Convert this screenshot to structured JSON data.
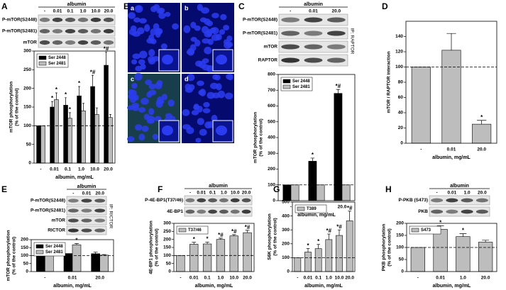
{
  "images": {
    "panel": "B",
    "labels": [
      "a",
      "b",
      "c",
      "d"
    ]
  },
  "chart_data": [
    {
      "panel": "A",
      "type": "bar",
      "blot": {
        "header": "albumin",
        "lanes": [
          "-",
          "0.01",
          "0.1",
          "1.0",
          "10.0",
          "20.0"
        ],
        "rows": [
          "P-mTOR(S2448)",
          "P-mTOR(S2481)",
          "mTOR"
        ]
      },
      "y_label": [
        "mTOR phosphorylation",
        "(% of the control)"
      ],
      "x_label": "albumin, mg/mL",
      "categories": [
        "-",
        "0.01",
        "0.1",
        "1.0",
        "10.0",
        "20.0"
      ],
      "series": [
        {
          "name": "Ser 2448",
          "color": "#000000",
          "values": [
            100,
            150,
            155,
            180,
            205,
            262
          ],
          "errors": [
            null,
            15,
            20,
            25,
            30,
            35
          ],
          "marks": [
            null,
            "*",
            "*",
            "*",
            "*#",
            "*#"
          ]
        },
        {
          "name": "Ser 2481",
          "color": "#bdbdbd",
          "values": [
            100,
            170,
            120,
            140,
            130,
            122
          ],
          "errors": [
            null,
            18,
            15,
            20,
            18,
            8
          ],
          "marks": [
            null,
            "*",
            "*",
            null,
            null,
            null
          ]
        }
      ],
      "ylim": [
        0,
        300
      ],
      "yticks": [
        0,
        50,
        100,
        150,
        200,
        250,
        300
      ],
      "reference_line": 100
    },
    {
      "panel": "C",
      "type": "bar",
      "blot": {
        "header": "albumin",
        "lanes": [
          "-",
          "0.01",
          "20.0"
        ],
        "rows": [
          "P-mTOR(S2448)",
          "P-mTOR(S2481)",
          "mTOR",
          "RAPTOR"
        ],
        "ip": "IP: RAPTOR"
      },
      "y_label": [
        "mTOR phosphorylation",
        "(% of the control)"
      ],
      "x_label": "albumin, mg/mL",
      "categories": [
        "-",
        "0.01",
        "20.0"
      ],
      "series": [
        {
          "name": "Ser 2448",
          "color": "#000000",
          "values": [
            100,
            250,
            680
          ],
          "errors": [
            null,
            20,
            25
          ],
          "marks": [
            null,
            "*",
            "*#"
          ]
        },
        {
          "name": "Ser 2481",
          "color": "#bdbdbd",
          "values": [
            100,
            100,
            100
          ],
          "errors": [
            null,
            null,
            null
          ],
          "marks": [
            null,
            null,
            null
          ]
        }
      ],
      "ylim": [
        0,
        800
      ],
      "yticks": [
        0,
        100,
        200,
        300,
        400,
        500,
        600,
        700,
        800
      ],
      "reference_line": 100
    },
    {
      "panel": "D",
      "type": "bar",
      "y_label": [
        "mTOR / RAPTOR interaction"
      ],
      "x_label": "albumin, mg/mL",
      "categories": [
        "-",
        "0.01",
        "20.0"
      ],
      "series": [
        {
          "color": "#bdbdbd",
          "values": [
            100,
            122,
            25
          ],
          "errors": [
            null,
            22,
            5
          ],
          "marks": [
            null,
            null,
            "*"
          ]
        }
      ],
      "ylim": [
        0,
        160
      ],
      "yticks": [
        0,
        20,
        40,
        60,
        80,
        100,
        120,
        140
      ],
      "reference_line": 100
    },
    {
      "panel": "E",
      "type": "bar",
      "blot": {
        "header": "albumin",
        "lanes": [
          "-",
          "0.01",
          "20.0"
        ],
        "rows": [
          "P-mTOR(S2448)",
          "P-mTOR(S2481)",
          "mTOR",
          "RICTOR"
        ],
        "ip": "IP: RICTOR"
      },
      "y_label": [
        "mTOR phosphorylation",
        "(% of the control)"
      ],
      "x_label": "albumin, mg/mL",
      "categories": [
        "-",
        "0.01",
        "20.0"
      ],
      "series": [
        {
          "name": "Ser 2448",
          "color": "#000000",
          "values": [
            100,
            113,
            112
          ],
          "errors": [
            null,
            null,
            10
          ],
          "marks": [
            null,
            null,
            null
          ]
        },
        {
          "name": "Ser 2481",
          "color": "#bdbdbd",
          "values": [
            100,
            168,
            103
          ],
          "errors": [
            null,
            8,
            4
          ],
          "marks": [
            null,
            "*",
            null
          ]
        }
      ],
      "ylim": [
        0,
        200
      ],
      "yticks": [
        0,
        50,
        100,
        150,
        200
      ],
      "reference_line": 100
    },
    {
      "panel": "F",
      "type": "bar",
      "blot": {
        "header": "albumin",
        "lanes": [
          "-",
          "0.01",
          "0.1",
          "1.0",
          "10.0",
          "20.0"
        ],
        "rows": [
          "P-4E-BP1(T37/46)",
          "4E-BP1"
        ]
      },
      "y_label": [
        "4E-BP1 phosphorylation",
        "(% of the control)"
      ],
      "x_label": "albumin, mg/mL",
      "categories": [
        "-",
        "0.01",
        "0.1",
        "1.0",
        "10.0",
        "20.0"
      ],
      "series": [
        {
          "name": "T37/46",
          "color": "#bdbdbd",
          "values": [
            100,
            170,
            172,
            200,
            222,
            242
          ],
          "errors": [
            null,
            12,
            12,
            8,
            8,
            15
          ],
          "marks": [
            null,
            "*",
            "*",
            "*#",
            "*#",
            "*#"
          ]
        }
      ],
      "ylim": [
        0,
        300
      ],
      "yticks": [
        0,
        50,
        100,
        150,
        200,
        250,
        300
      ],
      "reference_line": 100
    },
    {
      "panel": "G",
      "type": "bar",
      "y_label": [
        "S6K phosphorylation",
        "(% of the control)"
      ],
      "x_label": "albumin, mg/mL",
      "categories": [
        "-",
        "0.01",
        "0.1",
        "1.0",
        "10.0",
        "20.0"
      ],
      "series": [
        {
          "name": "T389",
          "color": "#bdbdbd",
          "values": [
            100,
            140,
            165,
            230,
            260,
            365
          ],
          "errors": [
            null,
            25,
            30,
            40,
            40,
            70
          ],
          "marks": [
            null,
            "*",
            "*",
            "*#",
            "*#",
            "*#"
          ]
        }
      ],
      "ylim": [
        0,
        500
      ],
      "yticks": [
        0,
        100,
        200,
        300,
        400,
        500
      ],
      "reference_line": 100
    },
    {
      "panel": "H",
      "type": "bar",
      "blot": {
        "header": "albumin",
        "lanes": [
          "-",
          "0.01",
          "1.0",
          "20.0"
        ],
        "rows": [
          "P-PKB (S473)",
          "PKB"
        ]
      },
      "y_label": [
        "PKB phosphorylation",
        "(% of the control)"
      ],
      "x_label": "albumin, mg/mL",
      "categories": [
        "-",
        "0.01",
        "1.0",
        "20.0"
      ],
      "series": [
        {
          "name": "S473",
          "color": "#bdbdbd",
          "values": [
            100,
            175,
            145,
            122
          ],
          "errors": [
            null,
            15,
            12,
            8
          ],
          "marks": [
            null,
            "*",
            "*",
            null
          ]
        }
      ],
      "ylim": [
        0,
        200
      ],
      "yticks": [
        0,
        50,
        100,
        150,
        200
      ],
      "reference_line": 100
    }
  ]
}
